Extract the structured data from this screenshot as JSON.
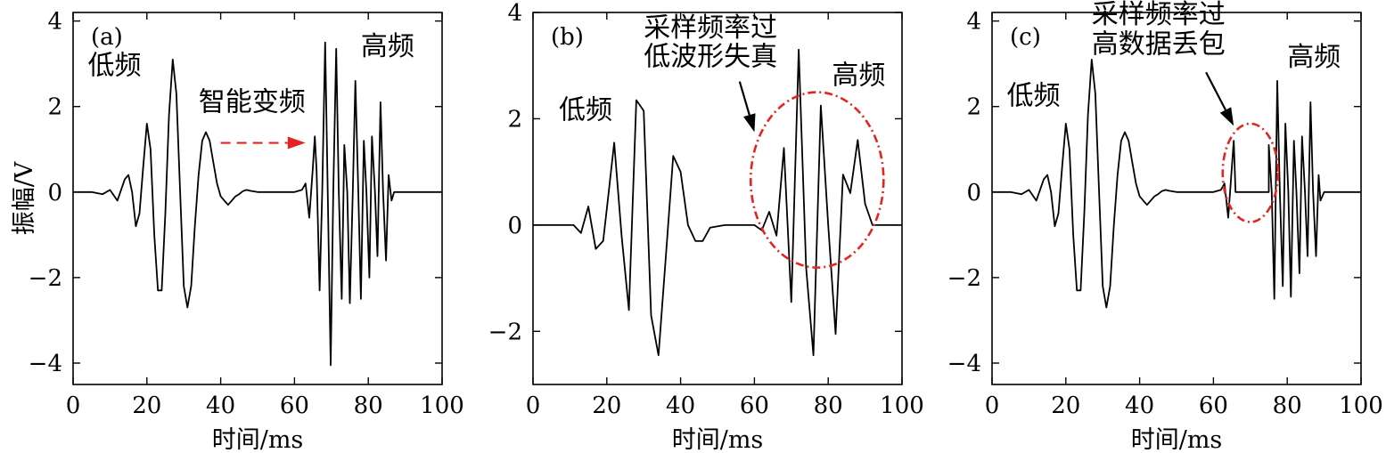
{
  "figure": {
    "ylabel": "振幅/V",
    "xlabel": "时间/ms"
  },
  "chart_data": [
    {
      "type": "line",
      "panel_label": "(a)",
      "xlabel": "时间/ms",
      "ylabel": "振幅/V",
      "xlim": [
        0,
        100
      ],
      "ylim": [
        -4.5,
        4.2
      ],
      "xticks": [
        0,
        20,
        40,
        60,
        80,
        100
      ],
      "yticks": [
        -4,
        -2,
        0,
        2,
        4
      ],
      "series": [
        {
          "x": [
            0,
            5,
            8,
            10,
            12,
            14,
            15,
            16,
            17,
            18,
            19,
            20,
            21,
            22,
            23,
            24,
            25,
            26,
            27,
            28,
            29,
            30,
            31,
            32,
            33,
            34,
            35,
            36,
            37,
            38,
            39,
            40,
            41,
            42,
            43,
            44,
            45,
            46,
            47,
            48,
            50,
            55,
            60,
            62,
            63,
            64,
            65,
            65.5,
            66,
            66.8,
            67.5,
            68.3,
            69,
            69.8,
            70.5,
            71.3,
            72,
            72.8,
            73.5,
            74.3,
            75,
            75.8,
            76.5,
            77.3,
            78,
            78.8,
            79.5,
            80.3,
            81,
            81.8,
            82.5,
            83.3,
            84,
            84.8,
            85.5,
            86.3,
            87,
            87.8,
            88.5,
            89,
            90,
            100
          ],
          "y": [
            0,
            0,
            -0.05,
            0.05,
            -0.2,
            0.3,
            0.4,
            0.0,
            -0.8,
            -0.5,
            0.6,
            1.6,
            1.0,
            -1.0,
            -2.3,
            -2.3,
            -0.5,
            1.8,
            3.1,
            2.3,
            0.0,
            -2.2,
            -2.7,
            -2.2,
            -0.8,
            0.4,
            1.2,
            1.4,
            1.2,
            0.7,
            0.2,
            -0.1,
            -0.2,
            -0.3,
            -0.2,
            -0.1,
            -0.05,
            0.02,
            0.05,
            0.03,
            0,
            0,
            0,
            0.05,
            0.2,
            -0.6,
            0.6,
            1.3,
            0.5,
            -2.3,
            0.0,
            3.5,
            0.0,
            -4.05,
            0.0,
            3.35,
            0.0,
            -2.5,
            1.1,
            0.0,
            -2.6,
            0.0,
            2.6,
            0.0,
            -2.5,
            1.2,
            0.0,
            -2.0,
            1.3,
            0.0,
            -1.5,
            2.1,
            0.0,
            -1.6,
            0.4,
            -0.2,
            0.0,
            0.0,
            0.0,
            0.0,
            0.0,
            0.0
          ]
        }
      ],
      "annotations": [
        {
          "text": "低频",
          "x": 4,
          "y": 2.75
        },
        {
          "text": "智能变频",
          "x": 34,
          "y": 1.9
        },
        {
          "text": "高频",
          "x": 78,
          "y": 3.2
        }
      ],
      "arrow": {
        "style": "dashed",
        "color": "#e52420",
        "from": [
          40,
          1.15
        ],
        "to": [
          63,
          1.15
        ]
      }
    },
    {
      "type": "line",
      "panel_label": "(b)",
      "xlabel": "时间/ms",
      "ylabel": "",
      "xlim": [
        0,
        100
      ],
      "ylim": [
        -3,
        4
      ],
      "xticks": [
        0,
        20,
        40,
        60,
        80,
        100
      ],
      "yticks": [
        -2,
        0,
        2,
        4
      ],
      "series": [
        {
          "x": [
            0,
            4,
            8,
            11,
            13,
            15,
            17,
            19,
            20,
            22,
            24,
            26,
            28,
            30,
            32,
            34,
            36,
            38,
            40,
            42,
            44,
            46,
            48,
            52,
            56,
            60,
            62,
            64,
            66,
            68,
            70,
            72,
            74,
            76,
            78,
            80,
            82,
            84,
            86,
            88,
            90,
            92,
            100
          ],
          "y": [
            0,
            0,
            0,
            0,
            -0.15,
            0.35,
            -0.45,
            -0.3,
            0.3,
            1.55,
            -0.2,
            -1.6,
            2.35,
            2.15,
            -1.7,
            -2.45,
            -0.6,
            1.3,
            1.0,
            0.0,
            -0.3,
            -0.3,
            -0.05,
            0,
            0,
            0.0,
            -0.1,
            0.25,
            -0.2,
            1.45,
            -1.45,
            3.3,
            -0.8,
            -2.45,
            2.25,
            0.0,
            -2.05,
            0.95,
            0.6,
            1.6,
            0.4,
            0,
            0
          ]
        }
      ],
      "annotations": [
        {
          "text": "低频",
          "x": 7,
          "y": 2.0
        },
        {
          "text": "采样频率过",
          "x": 30,
          "y": 3.55
        },
        {
          "text": "低波形失真",
          "x": 30,
          "y": 3.0
        },
        {
          "text": "高频",
          "x": 81,
          "y": 2.65
        }
      ],
      "ellipse": {
        "color": "#e52420",
        "cx": 77,
        "cy": 0.85,
        "rx": 18,
        "ry": 1.65
      },
      "arrow": {
        "style": "solid",
        "color": "#000000",
        "from": [
          56,
          2.7
        ],
        "to": [
          60,
          1.75
        ]
      }
    },
    {
      "type": "line",
      "panel_label": "(c)",
      "xlabel": "时间/ms",
      "ylabel": "",
      "xlim": [
        0,
        100
      ],
      "ylim": [
        -4.5,
        4.2
      ],
      "xticks": [
        0,
        20,
        40,
        60,
        80,
        100
      ],
      "yticks": [
        -4,
        -2,
        0,
        2,
        4
      ],
      "series": [
        {
          "x": [
            0,
            5,
            8,
            10,
            12,
            14,
            15,
            16,
            17,
            18,
            19,
            20,
            21,
            22,
            23,
            24,
            25,
            26,
            27,
            28,
            29,
            30,
            31,
            32,
            33,
            34,
            35,
            36,
            37,
            38,
            39,
            40,
            41,
            42,
            43,
            44,
            45,
            46,
            47,
            48,
            50,
            55,
            60,
            62,
            63,
            64,
            65,
            65.5,
            66,
            66.8,
            66.8,
            75,
            75,
            75.8,
            76.5,
            77.3,
            78,
            78.8,
            79.5,
            80.3,
            81,
            81.8,
            82.5,
            83.3,
            84,
            84.8,
            85.5,
            86.3,
            87,
            87.8,
            88.5,
            89,
            90,
            100
          ],
          "y": [
            0,
            0,
            -0.05,
            0.05,
            -0.2,
            0.3,
            0.4,
            0.0,
            -0.8,
            -0.5,
            0.6,
            1.6,
            1.0,
            -1.0,
            -2.3,
            -2.3,
            -0.5,
            1.8,
            3.1,
            2.3,
            0.0,
            -2.2,
            -2.7,
            -2.2,
            -0.8,
            0.4,
            1.2,
            1.4,
            1.2,
            0.7,
            0.2,
            -0.1,
            -0.2,
            -0.3,
            -0.2,
            -0.1,
            -0.05,
            0.02,
            0.05,
            0.03,
            0,
            0,
            0,
            0.05,
            0.2,
            -0.6,
            0.6,
            1.2,
            0.0,
            0.0,
            0.0,
            0.0,
            1.1,
            0.0,
            -2.5,
            2.6,
            0.0,
            -2.2,
            1.6,
            0.0,
            -2.45,
            1.2,
            0.0,
            -1.9,
            1.3,
            0.0,
            -1.5,
            2.1,
            0.0,
            -1.5,
            0.4,
            -0.2,
            0.0,
            0.0
          ]
        }
      ],
      "annotations": [
        {
          "text": "低频",
          "x": 4,
          "y": 2.05
        },
        {
          "text": "采样频率过",
          "x": 27,
          "y": 3.95
        },
        {
          "text": "高数据丢包",
          "x": 27,
          "y": 3.25
        },
        {
          "text": "高频",
          "x": 80,
          "y": 2.95
        }
      ],
      "ellipse": {
        "color": "#e52420",
        "cx": 70,
        "cy": 0.45,
        "rx": 7.5,
        "ry": 1.15
      },
      "arrow": {
        "style": "solid",
        "color": "#000000",
        "from": [
          58,
          2.8
        ],
        "to": [
          65.5,
          1.55
        ]
      }
    }
  ]
}
